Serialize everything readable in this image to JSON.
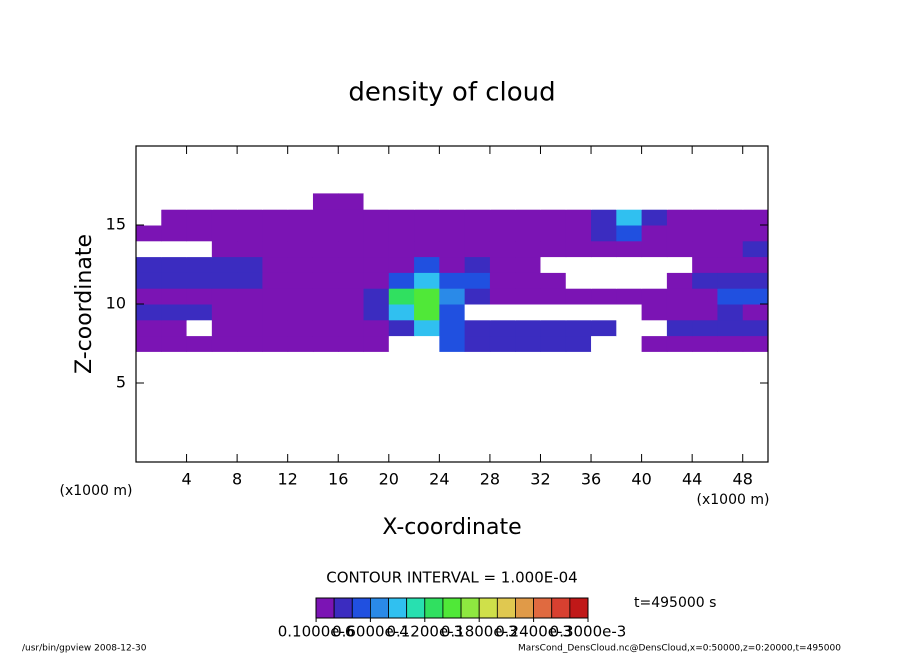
{
  "chart_data": {
    "type": "contour",
    "title": "density of cloud",
    "xlabel": "X-coordinate",
    "ylabel": "Z-coordinate",
    "x_unit": "(x1000 m)",
    "y_unit": "(x1000 m)",
    "xlim": [
      0,
      50
    ],
    "ylim": [
      0,
      20
    ],
    "xticks": [
      4,
      8,
      12,
      16,
      20,
      24,
      28,
      32,
      36,
      40,
      44,
      48
    ],
    "yticks": [
      5,
      10,
      15
    ],
    "x": [
      1,
      3,
      5,
      7,
      9,
      11,
      13,
      15,
      17,
      19,
      21,
      23,
      25,
      27,
      29,
      31,
      33,
      35,
      37,
      39,
      41,
      43,
      45,
      47,
      49
    ],
    "z": [
      7.5,
      8.5,
      9.5,
      10.5,
      11.5,
      12.5,
      13.5,
      14.5,
      15.5,
      16.5
    ],
    "values": [
      [
        1e-05,
        1e-05,
        1e-05,
        1e-05,
        1e-05,
        1e-05,
        1e-05,
        1e-05,
        1e-05,
        1e-05,
        0,
        0,
        4e-05,
        3e-05,
        3e-05,
        3e-05,
        3e-05,
        3e-05,
        0,
        0,
        1e-05,
        1e-05,
        1e-05,
        1e-05,
        1e-05
      ],
      [
        1e-05,
        1e-05,
        0,
        1e-05,
        1e-05,
        1e-05,
        1e-05,
        1e-05,
        1e-05,
        1e-05,
        3e-05,
        8e-05,
        4e-05,
        3e-05,
        3e-05,
        3e-05,
        3e-05,
        3e-05,
        2e-05,
        0,
        0,
        2e-05,
        2e-05,
        2e-05,
        2e-05
      ],
      [
        3e-05,
        3e-05,
        3e-05,
        1e-05,
        1e-05,
        1e-05,
        1e-05,
        1e-05,
        1e-05,
        2e-05,
        8e-05,
        0.00015,
        5e-05,
        0,
        0,
        0,
        0,
        0,
        0,
        0,
        1e-05,
        1e-05,
        1e-05,
        3e-05,
        1e-05
      ],
      [
        1e-05,
        1e-05,
        1e-05,
        1e-05,
        1e-05,
        1e-05,
        1e-05,
        1e-05,
        1e-05,
        3e-05,
        0.00012,
        0.00015,
        6e-05,
        2e-05,
        1e-05,
        1e-05,
        1e-05,
        1e-05,
        1e-05,
        1e-05,
        1e-05,
        1e-05,
        1e-05,
        4e-05,
        4e-05
      ],
      [
        2e-05,
        2e-05,
        2e-05,
        2e-05,
        2e-05,
        1e-05,
        1e-05,
        1e-05,
        1e-05,
        1e-05,
        5e-05,
        8e-05,
        5e-05,
        5e-05,
        1e-05,
        1e-05,
        1e-05,
        0,
        0,
        0,
        0,
        1e-05,
        3e-05,
        3e-05,
        3e-05
      ],
      [
        3e-05,
        3e-05,
        3e-05,
        3e-05,
        3e-05,
        1e-05,
        1e-05,
        1e-05,
        1e-05,
        1e-05,
        1e-05,
        5e-05,
        1e-05,
        3e-05,
        1e-05,
        1e-05,
        0,
        0,
        0,
        0,
        0,
        0,
        1e-05,
        1e-05,
        1e-05
      ],
      [
        0,
        0,
        0,
        1e-05,
        1e-05,
        1e-05,
        1e-05,
        1e-05,
        1e-05,
        1e-05,
        1e-05,
        1e-05,
        1e-05,
        1e-05,
        1e-05,
        1e-05,
        1e-05,
        1e-05,
        1e-05,
        1e-05,
        1e-05,
        1e-05,
        1e-05,
        1e-05,
        3e-05
      ],
      [
        1e-05,
        1e-05,
        1e-05,
        1e-05,
        1e-05,
        1e-05,
        1e-05,
        1e-05,
        1e-05,
        1e-05,
        1e-05,
        1e-05,
        1e-05,
        1e-05,
        1e-05,
        1e-05,
        1e-05,
        1e-05,
        3e-05,
        5e-05,
        1e-05,
        1e-05,
        1e-05,
        1e-05,
        1e-05
      ],
      [
        0,
        1e-05,
        1e-05,
        1e-05,
        1e-05,
        1e-05,
        1e-05,
        1e-05,
        1e-05,
        1e-05,
        1e-05,
        1e-05,
        1e-05,
        1e-05,
        1e-05,
        1e-05,
        1e-05,
        1e-05,
        3e-05,
        8e-05,
        2e-05,
        1e-05,
        1e-05,
        1e-05,
        1e-05
      ],
      [
        0,
        0,
        0,
        0,
        0,
        0,
        0,
        1e-05,
        1e-05,
        0,
        0,
        0,
        0,
        0,
        0,
        0,
        0,
        0,
        0,
        0,
        0,
        0,
        0,
        0,
        0
      ]
    ],
    "levels": [
      1e-07,
      2e-05,
      4e-05,
      6e-05,
      8e-05,
      0.0001,
      0.00012,
      0.00014,
      0.00016,
      0.00018,
      0.0002,
      0.00022,
      0.00024,
      0.00026,
      0.00028,
      0.0003
    ],
    "colors": [
      "#7b14b4",
      "#3b2cc0",
      "#2050e0",
      "#2a8ae8",
      "#30c0f0",
      "#28e0b0",
      "#30e060",
      "#50e838",
      "#8ee840",
      "#cfe04a",
      "#e0c850",
      "#e09a48",
      "#e06a40",
      "#d84030",
      "#c01818"
    ],
    "colorbar_lim": [
      0,
      0.0003
    ],
    "colorbar_ticks": [
      {
        "value": 1e-07,
        "label": "0.1000e-6"
      },
      {
        "value": 6e-05,
        "label": "0.6000e-4"
      },
      {
        "value": 0.00012,
        "label": "0.1200e-3"
      },
      {
        "value": 0.00018,
        "label": "0.1800e-3"
      },
      {
        "value": 0.00024,
        "label": "0.2400e-3"
      },
      {
        "value": 0.0003,
        "label": "0.3000e-3"
      }
    ],
    "contour_interval": "CONTOUR INTERVAL = 1.000E-04",
    "time_label": "t=495000 s",
    "footer_left": "/usr/bin/gpview   2008-12-30",
    "footer_right": "MarsCond_DensCloud.nc@DensCloud,x=0:50000,z=0:20000,t=495000"
  }
}
